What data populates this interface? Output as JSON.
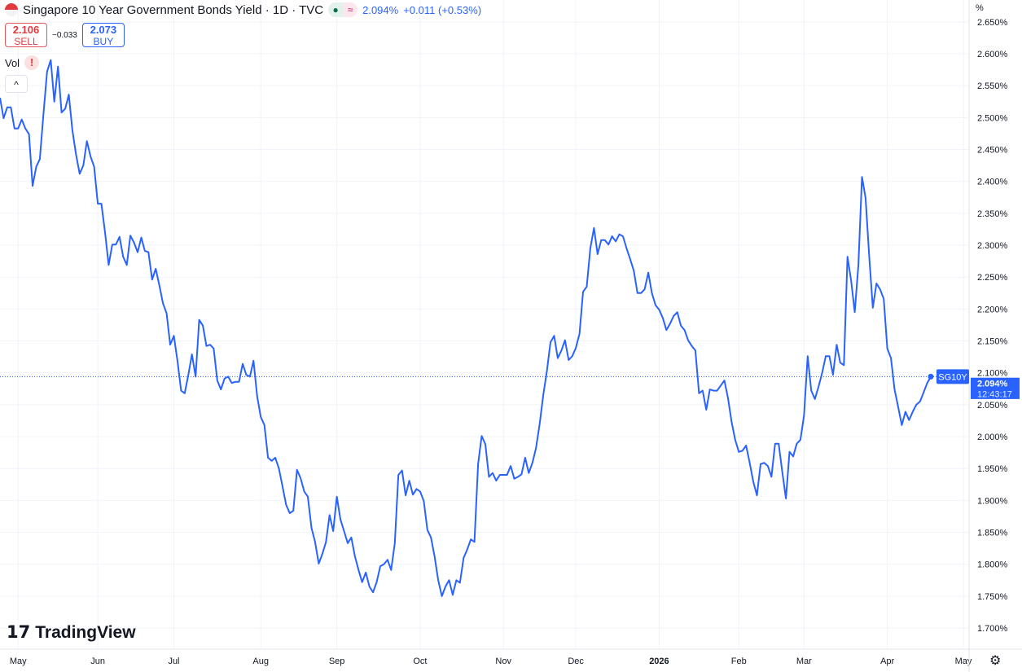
{
  "header": {
    "title": "Singapore 10 Year Government Bonds Yield · 1D · TVC",
    "price": "2.094%",
    "change": "+0.011 (+0.53%)",
    "status_icons": [
      "market-open-dot-icon",
      "delayed-data-icon"
    ]
  },
  "trade": {
    "sell_price": "2.106",
    "sell_label": "SELL",
    "spread": "−0.033",
    "buy_price": "2.073",
    "buy_label": "BUY"
  },
  "indicator": {
    "label": "Vol",
    "warning": "!",
    "collapse": "^"
  },
  "axis_unit": "%",
  "logo": "TradingView",
  "colors": {
    "line": "#2962ff",
    "grid": "#f0f3fa",
    "text": "#131722"
  },
  "chart_data": {
    "type": "line",
    "symbol": "SG10Y",
    "last_value": "2.094%",
    "countdown": "12:43:17",
    "ylim": [
      1.68,
      2.66
    ],
    "yticks": [
      "1.700%",
      "1.750%",
      "1.800%",
      "1.850%",
      "1.900%",
      "1.950%",
      "2.000%",
      "2.050%",
      "2.100%",
      "2.150%",
      "2.200%",
      "2.250%",
      "2.300%",
      "2.350%",
      "2.400%",
      "2.450%",
      "2.500%",
      "2.550%",
      "2.600%",
      "2.650%"
    ],
    "xticks": [
      {
        "label": "May",
        "bar": 5
      },
      {
        "label": "Jun",
        "bar": 27
      },
      {
        "label": "Jul",
        "bar": 48
      },
      {
        "label": "Aug",
        "bar": 72
      },
      {
        "label": "Sep",
        "bar": 93
      },
      {
        "label": "Oct",
        "bar": 116
      },
      {
        "label": "Nov",
        "bar": 139
      },
      {
        "label": "Dec",
        "bar": 159
      },
      {
        "label": "2026",
        "bar": 182
      },
      {
        "label": "Feb",
        "bar": 204
      },
      {
        "label": "Mar",
        "bar": 222
      },
      {
        "label": "Apr",
        "bar": 245
      },
      {
        "label": "May",
        "bar": 266
      }
    ],
    "grid": true,
    "values": [
      2.531,
      2.499,
      2.516,
      2.516,
      2.483,
      2.483,
      2.497,
      2.483,
      2.474,
      2.393,
      2.423,
      2.435,
      2.506,
      2.572,
      2.59,
      2.525,
      2.58,
      2.508,
      2.514,
      2.536,
      2.48,
      2.442,
      2.412,
      2.425,
      2.463,
      2.439,
      2.423,
      2.365,
      2.365,
      2.32,
      2.269,
      2.301,
      2.301,
      2.313,
      2.282,
      2.269,
      2.315,
      2.304,
      2.289,
      2.312,
      2.291,
      2.289,
      2.246,
      2.263,
      2.237,
      2.209,
      2.193,
      2.144,
      2.158,
      2.119,
      2.072,
      2.068,
      2.097,
      2.129,
      2.094,
      2.183,
      2.174,
      2.142,
      2.144,
      2.138,
      2.088,
      2.074,
      2.091,
      2.094,
      2.084,
      2.086,
      2.086,
      2.114,
      2.097,
      2.094,
      2.119,
      2.063,
      2.031,
      2.018,
      1.967,
      1.962,
      1.967,
      1.95,
      1.922,
      1.893,
      1.88,
      1.884,
      1.948,
      1.935,
      1.914,
      1.906,
      1.857,
      1.835,
      1.801,
      1.816,
      1.835,
      1.877,
      1.852,
      1.906,
      1.87,
      1.852,
      1.833,
      1.842,
      1.812,
      1.791,
      1.772,
      1.787,
      1.765,
      1.756,
      1.772,
      1.797,
      1.8,
      1.807,
      1.791,
      1.833,
      1.94,
      1.947,
      1.908,
      1.931,
      1.909,
      1.918,
      1.914,
      1.899,
      1.854,
      1.842,
      1.812,
      1.775,
      1.75,
      1.765,
      1.775,
      1.752,
      1.775,
      1.771,
      1.81,
      1.823,
      1.839,
      1.835,
      1.957,
      2.001,
      1.988,
      1.937,
      1.943,
      1.931,
      1.94,
      1.94,
      1.94,
      1.954,
      1.934,
      1.937,
      1.941,
      1.967,
      1.943,
      1.959,
      1.982,
      2.02,
      2.065,
      2.103,
      2.148,
      2.158,
      2.123,
      2.135,
      2.151,
      2.12,
      2.126,
      2.139,
      2.161,
      2.227,
      2.235,
      2.295,
      2.327,
      2.286,
      2.308,
      2.308,
      2.301,
      2.314,
      2.306,
      2.317,
      2.314,
      2.295,
      2.278,
      2.26,
      2.225,
      2.225,
      2.231,
      2.257,
      2.225,
      2.206,
      2.199,
      2.186,
      2.167,
      2.177,
      2.189,
      2.195,
      2.174,
      2.167,
      2.151,
      2.142,
      2.135,
      2.068,
      2.072,
      2.042,
      2.074,
      2.072,
      2.072,
      2.08,
      2.088,
      2.061,
      2.023,
      1.995,
      1.976,
      1.978,
      1.986,
      1.959,
      1.929,
      1.908,
      1.957,
      1.959,
      1.954,
      1.937,
      1.989,
      1.989,
      1.944,
      1.903,
      1.976,
      1.969,
      1.989,
      1.995,
      2.033,
      2.126,
      2.072,
      2.059,
      2.078,
      2.1,
      2.126,
      2.126,
      2.097,
      2.144,
      2.116,
      2.112,
      2.282,
      2.244,
      2.195,
      2.269,
      2.407,
      2.374,
      2.282,
      2.202,
      2.24,
      2.231,
      2.216,
      2.138,
      2.123,
      2.074,
      2.046,
      2.018,
      2.039,
      2.026,
      2.039,
      2.05,
      2.055,
      2.069,
      2.084,
      2.094
    ]
  }
}
